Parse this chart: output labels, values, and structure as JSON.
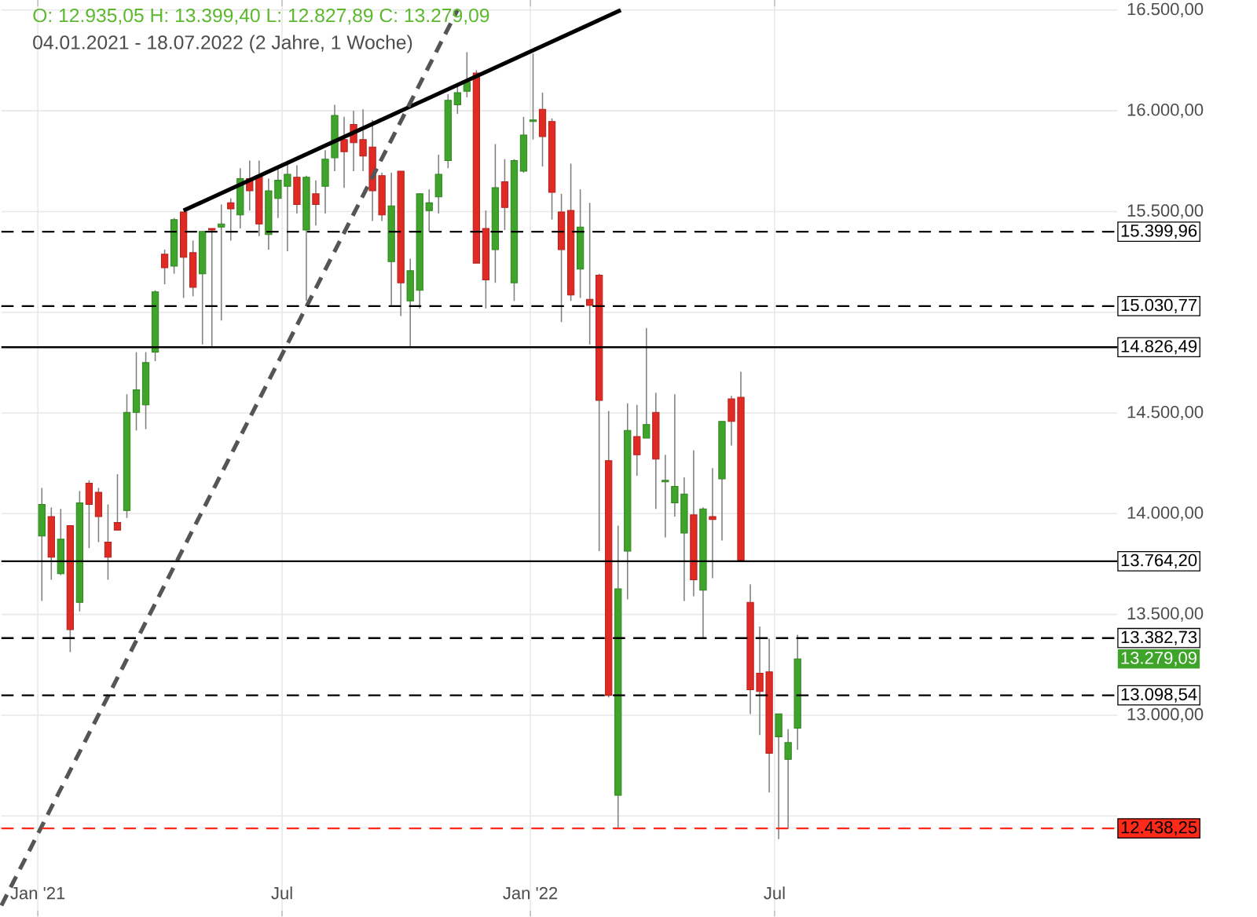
{
  "chart_data": {
    "type": "candlestick",
    "title": "O: 12.935,05  H: 13.399,40  L: 12.827,89  C: 13.279,09",
    "subtitle": "04.01.2021 - 18.07.2022   (2 Jahre, 1 Woche)",
    "x": [
      "2021-01-04",
      "2021-01-11",
      "2021-01-18",
      "2021-01-25",
      "2021-02-01",
      "2021-02-08",
      "2021-02-15",
      "2021-02-22",
      "2021-03-01",
      "2021-03-08",
      "2021-03-15",
      "2021-03-22",
      "2021-03-29",
      "2021-04-05",
      "2021-04-12",
      "2021-04-19",
      "2021-04-26",
      "2021-05-03",
      "2021-05-10",
      "2021-05-17",
      "2021-05-24",
      "2021-05-31",
      "2021-06-07",
      "2021-06-14",
      "2021-06-21",
      "2021-06-28",
      "2021-07-05",
      "2021-07-12",
      "2021-07-19",
      "2021-07-26",
      "2021-08-02",
      "2021-08-09",
      "2021-08-16",
      "2021-08-23",
      "2021-08-30",
      "2021-09-06",
      "2021-09-13",
      "2021-09-20",
      "2021-09-27",
      "2021-10-04",
      "2021-10-11",
      "2021-10-18",
      "2021-10-25",
      "2021-11-01",
      "2021-11-08",
      "2021-11-15",
      "2021-11-22",
      "2021-11-29",
      "2021-12-06",
      "2021-12-13",
      "2021-12-20",
      "2021-12-27",
      "2022-01-03",
      "2022-01-10",
      "2022-01-17",
      "2022-01-24",
      "2022-01-31",
      "2022-02-07",
      "2022-02-14",
      "2022-02-21",
      "2022-02-28",
      "2022-03-07",
      "2022-03-14",
      "2022-03-21",
      "2022-03-28",
      "2022-04-04",
      "2022-04-11",
      "2022-04-18",
      "2022-04-25",
      "2022-05-02",
      "2022-05-09",
      "2022-05-16",
      "2022-05-23",
      "2022-05-30",
      "2022-06-06",
      "2022-06-13",
      "2022-06-20",
      "2022-06-27",
      "2022-07-04",
      "2022-07-11",
      "2022-07-18"
    ],
    "ohlc": [
      [
        13889,
        14128,
        13567,
        14046
      ],
      [
        13986,
        14031,
        13672,
        13784
      ],
      [
        13702,
        14024,
        13695,
        13874
      ],
      [
        13941,
        13941,
        13313,
        13425
      ],
      [
        13560,
        14113,
        13515,
        14054
      ],
      [
        14151,
        14166,
        13829,
        14046
      ],
      [
        14106,
        14128,
        13859,
        13986
      ],
      [
        13859,
        14046,
        13672,
        13784
      ],
      [
        13956,
        14196,
        13919,
        13919
      ],
      [
        14016,
        14593,
        13979,
        14503
      ],
      [
        14503,
        14802,
        14413,
        14615
      ],
      [
        14540,
        14802,
        14420,
        14750
      ],
      [
        14802,
        15109,
        14757,
        15101
      ],
      [
        15288,
        15311,
        15139,
        15221
      ],
      [
        15229,
        15468,
        15191,
        15460
      ],
      [
        15498,
        15498,
        15071,
        15273
      ],
      [
        15296,
        15356,
        15079,
        15124
      ],
      [
        15191,
        15401,
        14840,
        15401
      ],
      [
        15416,
        15416,
        14825,
        15408
      ],
      [
        15423,
        15535,
        14959,
        15438
      ],
      [
        15543,
        15565,
        15356,
        15513
      ],
      [
        15483,
        15715,
        15416,
        15663
      ],
      [
        15663,
        15753,
        15505,
        15603
      ],
      [
        15678,
        15753,
        15378,
        15438
      ],
      [
        15386,
        15663,
        15311,
        15603
      ],
      [
        15565,
        15730,
        15468,
        15655
      ],
      [
        15625,
        15753,
        15303,
        15685
      ],
      [
        15670,
        15730,
        15490,
        15535
      ],
      [
        15408,
        15678,
        15056,
        15670
      ],
      [
        15588,
        15655,
        15431,
        15535
      ],
      [
        15625,
        15805,
        15490,
        15760
      ],
      [
        15767,
        16030,
        15700,
        15977
      ],
      [
        15857,
        15970,
        15618,
        15797
      ],
      [
        15932,
        16000,
        15700,
        15842
      ],
      [
        15857,
        16007,
        15700,
        15775
      ],
      [
        15820,
        15955,
        15453,
        15603
      ],
      [
        15678,
        15693,
        15453,
        15483
      ],
      [
        15251,
        15693,
        15026,
        15528
      ],
      [
        15700,
        15700,
        14981,
        15146
      ],
      [
        15056,
        15266,
        14825,
        15206
      ],
      [
        15109,
        15588,
        15019,
        15588
      ],
      [
        15505,
        15610,
        15401,
        15543
      ],
      [
        15573,
        15782,
        15490,
        15685
      ],
      [
        15753,
        16082,
        15715,
        16052
      ],
      [
        16030,
        16127,
        15985,
        16090
      ],
      [
        16097,
        16291,
        16067,
        16142
      ],
      [
        16187,
        16202,
        15244,
        15244
      ],
      [
        15416,
        15505,
        15019,
        15161
      ],
      [
        15311,
        15835,
        15146,
        15618
      ],
      [
        15648,
        15760,
        15408,
        15520
      ],
      [
        15146,
        15760,
        15056,
        15753
      ],
      [
        15700,
        15970,
        15693,
        15880
      ],
      [
        15947,
        16284,
        15857,
        15955
      ],
      [
        16007,
        16090,
        15723,
        15872
      ],
      [
        15947,
        15962,
        15460,
        15595
      ],
      [
        15498,
        15588,
        14951,
        15311
      ],
      [
        15505,
        15738,
        15056,
        15086
      ],
      [
        15214,
        15610,
        15071,
        15423
      ],
      [
        15064,
        15543,
        14840,
        15034
      ],
      [
        15184,
        15191,
        13814,
        14563
      ],
      [
        14263,
        14510,
        13088,
        13098.54
      ],
      [
        12602,
        13941,
        12438.25,
        13627
      ],
      [
        13814,
        14548,
        13575,
        14413
      ],
      [
        14383,
        14540,
        14188,
        14293
      ],
      [
        14375,
        14922,
        14375,
        14443
      ],
      [
        14503,
        14600,
        14024,
        14271
      ],
      [
        14158,
        14293,
        13882,
        14166
      ],
      [
        14054,
        14593,
        13986,
        14136
      ],
      [
        13904,
        14181,
        13567,
        14098
      ],
      [
        13994,
        14315,
        13590,
        13672
      ],
      [
        13620,
        14031,
        13382.73,
        14024
      ],
      [
        13986,
        14226,
        13680,
        13971
      ],
      [
        14173,
        14458,
        13867,
        14458
      ],
      [
        14570,
        14585,
        14338,
        14458
      ],
      [
        14578,
        14705,
        13769,
        13769
      ],
      [
        13560,
        13650,
        13006,
        13126
      ],
      [
        13208,
        13440,
        12901,
        13118
      ],
      [
        13215,
        13380,
        12617,
        12811
      ],
      [
        12893,
        13006,
        12385,
        13006
      ],
      [
        12781,
        12931,
        12437,
        12864
      ],
      [
        12935.05,
        13399.4,
        12827.89,
        13279.09
      ]
    ],
    "colors": [
      "#3ea52a",
      "#e02b25",
      "#3ea52a",
      "#e02b25",
      "#3ea52a",
      "#e02b25",
      "#e02b25",
      "#e02b25",
      "#e02b25",
      "#3ea52a",
      "#3ea52a",
      "#3ea52a",
      "#3ea52a",
      "#e02b25",
      "#3ea52a",
      "#e02b25",
      "#e02b25",
      "#3ea52a",
      "#e02b25",
      "#3ea52a",
      "#e02b25",
      "#3ea52a",
      "#e02b25",
      "#e02b25",
      "#3ea52a",
      "#3ea52a",
      "#3ea52a",
      "#e02b25",
      "#3ea52a",
      "#e02b25",
      "#3ea52a",
      "#3ea52a",
      "#e02b25",
      "#e02b25",
      "#e02b25",
      "#e02b25",
      "#e02b25",
      "#3ea52a",
      "#e02b25",
      "#3ea52a",
      "#3ea52a",
      "#3ea52a",
      "#3ea52a",
      "#3ea52a",
      "#3ea52a",
      "#3ea52a",
      "#e02b25",
      "#e02b25",
      "#3ea52a",
      "#e02b25",
      "#3ea52a",
      "#3ea52a",
      "#3ea52a",
      "#e02b25",
      "#e02b25",
      "#e02b25",
      "#e02b25",
      "#3ea52a",
      "#e02b25",
      "#e02b25",
      "#e02b25",
      "#3ea52a",
      "#3ea52a",
      "#e02b25",
      "#3ea52a",
      "#e02b25",
      "#3ea52a",
      "#3ea52a",
      "#3ea52a",
      "#e02b25",
      "#3ea52a",
      "#e02b25",
      "#3ea52a",
      "#e02b25",
      "#e02b25",
      "#e02b25",
      "#e02b25",
      "#e02b25",
      "#3ea52a",
      "#3ea52a",
      "#3ea52a"
    ],
    "series": [
      {
        "type": "line",
        "color": "#000000",
        "line_style": "solid",
        "x": [
          "2021-04-19",
          "2022-03-09"
        ],
        "values": [
          15505,
          16500
        ]
      },
      {
        "type": "line",
        "color": "#555555",
        "line_style": "dashed",
        "x": [
          "2020-12-05",
          "2021-11-08"
        ],
        "values": [
          12055,
          16500
        ]
      }
    ],
    "ref_lines": [
      {
        "axis": "y",
        "value": 15399.96,
        "label": "15.399,96",
        "color": "#000000",
        "line_style": "dashed"
      },
      {
        "axis": "y",
        "value": 15030.77,
        "label": "15.030,77",
        "color": "#000000",
        "line_style": "dashed"
      },
      {
        "axis": "y",
        "value": 14826.49,
        "label": "14.826,49",
        "color": "#000000",
        "line_style": "solid"
      },
      {
        "axis": "y",
        "value": 13764.2,
        "label": "13.764,20",
        "color": "#000000",
        "line_style": "solid"
      },
      {
        "axis": "y",
        "value": 13382.73,
        "label": "13.382,73",
        "color": "#000000",
        "line_style": "dashed"
      },
      {
        "axis": "y",
        "value": 13098.54,
        "label": "13.098,54",
        "color": "#000000",
        "line_style": "dashed"
      },
      {
        "axis": "y",
        "value": 12438.25,
        "label": "12.438,25",
        "color": "#ff2a1a",
        "line_style": "dashed"
      }
    ],
    "annotations": [
      "13.279,09"
    ],
    "xlim": [
      "2020-12-05",
      "2023-03-12"
    ],
    "xticks": [
      {
        "value": "2021-01-01",
        "label": "Jan '21"
      },
      {
        "value": "2021-07-01",
        "label": "Jul"
      },
      {
        "value": "2022-01-01",
        "label": "Jan '22"
      },
      {
        "value": "2022-07-01",
        "label": "Jul"
      }
    ],
    "ylim": [
      12000,
      16550
    ],
    "yticks": [
      {
        "value": 12500,
        "label": null
      },
      {
        "value": 13000,
        "label": "13.000,00"
      },
      {
        "value": 13500,
        "label": "13.500,00"
      },
      {
        "value": 14000,
        "label": "14.000,00"
      },
      {
        "value": 14500,
        "label": "14.500,00"
      },
      {
        "value": 15000,
        "label": null
      },
      {
        "value": 15500,
        "label": "15.500,00"
      },
      {
        "value": 16000,
        "label": "16.000,00"
      },
      {
        "value": 16500,
        "label": "16.500,00"
      }
    ],
    "grid": true
  }
}
